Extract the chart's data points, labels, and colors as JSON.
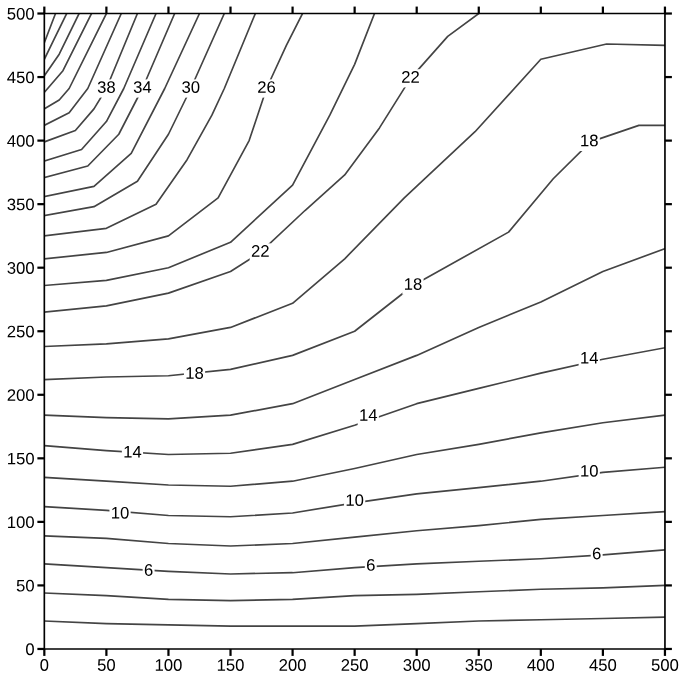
{
  "chart_data": {
    "type": "line",
    "xlim": [
      0,
      500
    ],
    "ylim": [
      0,
      500
    ],
    "xticks": [
      0,
      50,
      100,
      150,
      200,
      250,
      300,
      350,
      400,
      450,
      500
    ],
    "yticks": [
      0,
      50,
      100,
      150,
      200,
      250,
      300,
      350,
      400,
      450,
      500
    ],
    "grid": false,
    "series": [
      {
        "color": "#444444",
        "x": [
          0,
          50,
          100,
          150,
          200,
          250,
          300,
          350,
          400,
          450,
          500
        ],
        "values": [
          22,
          20,
          19,
          18,
          18,
          18,
          20,
          22,
          23,
          24,
          25
        ]
      },
      {
        "color": "#444444",
        "x": [
          0,
          50,
          100,
          150,
          200,
          250,
          300,
          350,
          400,
          450,
          500
        ],
        "values": [
          44,
          42,
          39,
          38,
          39,
          42,
          43,
          45,
          47,
          48,
          50
        ]
      },
      {
        "color": "#444444",
        "x": [
          0,
          50,
          100,
          150,
          200,
          250,
          300,
          350,
          400,
          450,
          500
        ],
        "values": [
          67,
          64,
          61,
          59,
          60,
          64,
          67,
          69,
          71,
          74,
          78
        ]
      },
      {
        "color": "#444444",
        "x": [
          0,
          50,
          100,
          150,
          200,
          250,
          300,
          350,
          400,
          450,
          500
        ],
        "values": [
          89,
          87,
          83,
          81,
          83,
          88,
          93,
          97,
          102,
          105,
          108
        ]
      },
      {
        "color": "#444444",
        "x": [
          0,
          50,
          100,
          150,
          200,
          250,
          300,
          350,
          400,
          450,
          500
        ],
        "values": [
          112,
          109,
          105,
          104,
          107,
          115,
          122,
          127,
          132,
          139,
          143
        ]
      },
      {
        "color": "#444444",
        "x": [
          0,
          50,
          100,
          150,
          200,
          250,
          300,
          350,
          400,
          450,
          500
        ],
        "values": [
          135,
          132,
          129,
          128,
          132,
          142,
          153,
          161,
          170,
          178,
          184
        ]
      },
      {
        "color": "#444444",
        "x": [
          0,
          50,
          100,
          150,
          200,
          250,
          300,
          350,
          400,
          450,
          500
        ],
        "values": [
          160,
          156,
          153,
          154,
          161,
          176,
          193,
          205,
          217,
          228,
          237
        ]
      },
      {
        "color": "#444444",
        "x": [
          0,
          50,
          100,
          150,
          200,
          250,
          300,
          350,
          400,
          450,
          500
        ],
        "values": [
          184,
          182,
          181,
          184,
          193,
          212,
          231,
          253,
          273,
          297,
          315
        ]
      },
      {
        "color": "#444444",
        "x": [
          0,
          50,
          100,
          150,
          200,
          250,
          297,
          374,
          410,
          440,
          479,
          500
        ],
        "values": [
          212,
          214,
          215,
          220,
          231,
          250,
          286,
          328,
          370,
          399,
          412,
          412
        ]
      },
      {
        "color": "#444444",
        "x": [
          0,
          50,
          100,
          150,
          200,
          242,
          290,
          347,
          400,
          453,
          500
        ],
        "values": [
          238,
          240,
          244,
          253,
          272,
          307,
          355,
          407,
          464,
          476,
          475
        ]
      },
      {
        "color": "#444444",
        "x": [
          0,
          50,
          100,
          150,
          174,
          210,
          242,
          270,
          295,
          325,
          350
        ],
        "values": [
          265,
          270,
          280,
          297,
          312,
          345,
          373,
          410,
          449,
          482,
          500
        ]
      },
      {
        "color": "#444444",
        "x": [
          0,
          50,
          100,
          150,
          200,
          230,
          250,
          266
        ],
        "values": [
          286,
          290,
          300,
          320,
          365,
          420,
          460,
          500
        ]
      },
      {
        "color": "#444444",
        "x": [
          0,
          50,
          100,
          140,
          165,
          179,
          195,
          208
        ],
        "values": [
          307,
          312,
          325,
          355,
          400,
          441,
          475,
          500
        ]
      },
      {
        "color": "#444444",
        "x": [
          0,
          50,
          90,
          115,
          135,
          145,
          170
        ],
        "values": [
          325,
          331,
          350,
          385,
          420,
          441,
          500
        ]
      },
      {
        "color": "#444444",
        "x": [
          0,
          40,
          75,
          100,
          118,
          145
        ],
        "values": [
          341,
          348,
          368,
          405,
          441,
          500
        ]
      },
      {
        "color": "#444444",
        "x": [
          0,
          40,
          70,
          97,
          125
        ],
        "values": [
          356,
          364,
          390,
          441,
          500
        ]
      },
      {
        "color": "#444444",
        "x": [
          0,
          35,
          60,
          79,
          105
        ],
        "values": [
          371,
          380,
          405,
          441,
          500
        ]
      },
      {
        "color": "#444444",
        "x": [
          0,
          30,
          50,
          64,
          90
        ],
        "values": [
          384,
          393,
          415,
          441,
          500
        ]
      },
      {
        "color": "#444444",
        "x": [
          0,
          25,
          40,
          50,
          75
        ],
        "values": [
          399,
          408,
          425,
          441,
          500
        ]
      },
      {
        "color": "#444444",
        "x": [
          0,
          20,
          35,
          62
        ],
        "values": [
          412,
          422,
          441,
          500
        ]
      },
      {
        "color": "#444444",
        "x": [
          0,
          12,
          20,
          50
        ],
        "values": [
          425,
          432,
          441,
          500
        ]
      },
      {
        "color": "#444444",
        "x": [
          0,
          15,
          38
        ],
        "values": [
          438,
          455,
          500
        ]
      },
      {
        "color": "#444444",
        "x": [
          0,
          12,
          28
        ],
        "values": [
          451,
          468,
          500
        ]
      },
      {
        "color": "#444444",
        "x": [
          0,
          8,
          18
        ],
        "values": [
          464,
          480,
          500
        ]
      },
      {
        "color": "#444444",
        "x": [
          0,
          9
        ],
        "values": [
          477,
          500
        ]
      }
    ],
    "annotations": [
      {
        "text": "6",
        "x": 84,
        "y": 61
      },
      {
        "text": "6",
        "x": 263,
        "y": 65
      },
      {
        "text": "6",
        "x": 445,
        "y": 74
      },
      {
        "text": "10",
        "x": 61,
        "y": 106
      },
      {
        "text": "10",
        "x": 250,
        "y": 116
      },
      {
        "text": "10",
        "x": 439,
        "y": 139
      },
      {
        "text": "14",
        "x": 71,
        "y": 154
      },
      {
        "text": "14",
        "x": 261,
        "y": 183
      },
      {
        "text": "14",
        "x": 439,
        "y": 228
      },
      {
        "text": "18",
        "x": 121,
        "y": 216
      },
      {
        "text": "18",
        "x": 297,
        "y": 286
      },
      {
        "text": "18",
        "x": 439,
        "y": 399
      },
      {
        "text": "22",
        "x": 174,
        "y": 312
      },
      {
        "text": "22",
        "x": 295,
        "y": 449
      },
      {
        "text": "26",
        "x": 179,
        "y": 441
      },
      {
        "text": "30",
        "x": 118,
        "y": 441
      },
      {
        "text": "34",
        "x": 79,
        "y": 441
      },
      {
        "text": "38",
        "x": 50,
        "y": 441
      }
    ]
  }
}
